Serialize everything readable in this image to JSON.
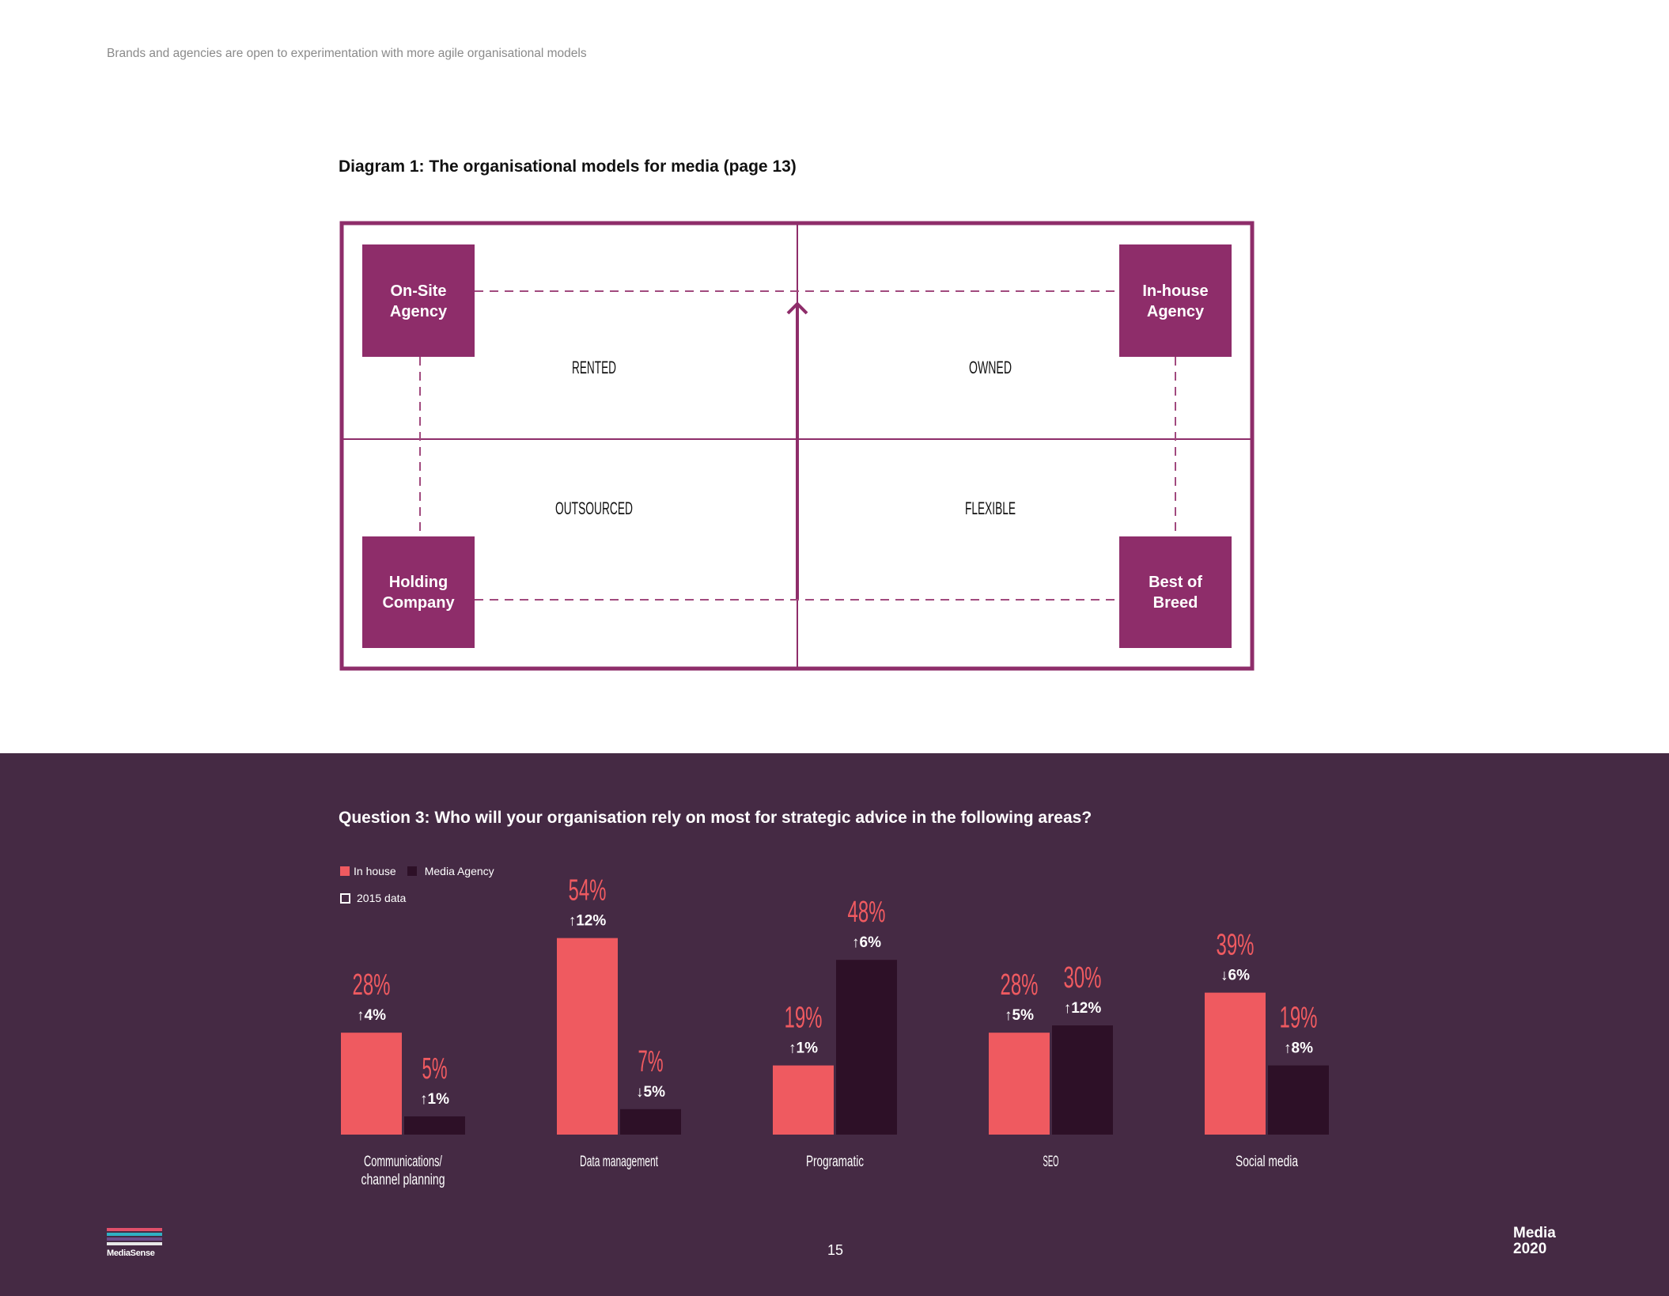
{
  "header": {
    "subtitle": "Brands and agencies are open to experimentation with more agile organisational models"
  },
  "diagram": {
    "title": "Diagram 1: The organisational models for media (page 13)",
    "boxes": {
      "top_left": [
        "On-Site",
        "Agency"
      ],
      "top_right": [
        "In-house",
        "Agency"
      ],
      "bottom_left": [
        "Holding",
        "Company"
      ],
      "bottom_right": [
        "Best of",
        "Breed"
      ]
    },
    "quadrants": {
      "top_left": "RENTED",
      "top_right": "OWNED",
      "bottom_left": "OUTSOURCED",
      "bottom_right": "FLEXIBLE"
    },
    "colors": {
      "primary": "#8e2d6a",
      "dashed": "#a14a7e"
    }
  },
  "question": {
    "title": "Question 3: Who will your organisation rely on most for strategic advice in the following areas?"
  },
  "legend": {
    "inhouse": "In house",
    "agency": "Media Agency",
    "y2015": "2015 data"
  },
  "chart_data": {
    "type": "bar",
    "title": "Question 3: Who will your organisation rely on most for strategic advice in the following areas?",
    "categories": [
      [
        "Communications/",
        "channel planning"
      ],
      [
        "Data management"
      ],
      [
        "Programatic"
      ],
      [
        "SEO"
      ],
      [
        "Social media"
      ]
    ],
    "ylim": [
      0,
      60
    ],
    "grid": false,
    "legend_position": "top-left",
    "series": [
      {
        "name": "In house",
        "color": "#ef5a60",
        "values": [
          28,
          54,
          19,
          28,
          39
        ],
        "labels": [
          "28%",
          "54%",
          "19%",
          "28%",
          "39%"
        ],
        "changes": [
          "↑4%",
          "↑12%",
          "↑1%",
          "↑5%",
          "↓6%"
        ]
      },
      {
        "name": "Media Agency",
        "color": "#2d1027",
        "values": [
          5,
          7,
          48,
          30,
          19
        ],
        "labels": [
          "5%",
          "7%",
          "48%",
          "30%",
          "19%"
        ],
        "changes": [
          "↑1%",
          "↓5%",
          "↑6%",
          "↑12%",
          "↑8%"
        ]
      }
    ]
  },
  "footer": {
    "page_number": "15",
    "logo_text": "MediaSense",
    "brand_line1": "Media",
    "brand_line2": "2020",
    "logo_colors": [
      "#e04f6a",
      "#2fb0c4",
      "#6b4c8a",
      "#e8e8e8"
    ]
  }
}
